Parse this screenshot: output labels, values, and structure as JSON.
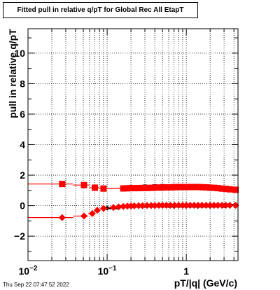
{
  "chart_data": {
    "type": "scatter",
    "title": "Fitted pull in relative q/pT for Global Rec All EtapT",
    "xlabel": "pT/|q| (GeV/c)",
    "ylabel": "pull in relative q/pT",
    "xscale": "log",
    "xlim": [
      0.01,
      4.5
    ],
    "ylim": [
      -3.6,
      11.6
    ],
    "grid": true,
    "x_tick_labels": [
      "10−2",
      "10−1",
      "1"
    ],
    "y_ticks": [
      -2,
      0,
      2,
      4,
      6,
      8,
      10
    ],
    "series": [
      {
        "color": "#ff0000",
        "marker": "square",
        "points": [
          {
            "x": 0.027,
            "y": 1.42
          },
          {
            "x": 0.051,
            "y": 1.35
          },
          {
            "x": 0.07,
            "y": 1.18
          },
          {
            "x": 0.09,
            "y": 1.12
          },
          {
            "x": 0.16,
            "y": 1.13
          },
          {
            "x": 0.18,
            "y": 1.14
          },
          {
            "x": 0.2,
            "y": 1.15
          },
          {
            "x": 0.22,
            "y": 1.15
          },
          {
            "x": 0.25,
            "y": 1.15
          },
          {
            "x": 0.28,
            "y": 1.16
          },
          {
            "x": 0.32,
            "y": 1.16
          },
          {
            "x": 0.36,
            "y": 1.17
          },
          {
            "x": 0.4,
            "y": 1.18
          },
          {
            "x": 0.45,
            "y": 1.19
          },
          {
            "x": 0.5,
            "y": 1.19
          },
          {
            "x": 0.56,
            "y": 1.2
          },
          {
            "x": 0.63,
            "y": 1.2
          },
          {
            "x": 0.71,
            "y": 1.21
          },
          {
            "x": 0.8,
            "y": 1.22
          },
          {
            "x": 0.9,
            "y": 1.22
          },
          {
            "x": 1.0,
            "y": 1.22
          },
          {
            "x": 1.12,
            "y": 1.22
          },
          {
            "x": 1.26,
            "y": 1.22
          },
          {
            "x": 1.41,
            "y": 1.22
          },
          {
            "x": 1.58,
            "y": 1.21
          },
          {
            "x": 1.78,
            "y": 1.2
          },
          {
            "x": 2.0,
            "y": 1.18
          },
          {
            "x": 2.24,
            "y": 1.17
          },
          {
            "x": 2.51,
            "y": 1.15
          },
          {
            "x": 2.82,
            "y": 1.12
          },
          {
            "x": 3.16,
            "y": 1.1
          },
          {
            "x": 3.55,
            "y": 1.07
          },
          {
            "x": 4.2,
            "y": 1.04
          }
        ]
      },
      {
        "color": "#ff0000",
        "marker": "diamond",
        "points": [
          {
            "x": 0.027,
            "y": -0.78
          },
          {
            "x": 0.051,
            "y": -0.68
          },
          {
            "x": 0.065,
            "y": -0.52
          },
          {
            "x": 0.075,
            "y": -0.3
          },
          {
            "x": 0.09,
            "y": -0.18
          },
          {
            "x": 0.12,
            "y": -0.12
          },
          {
            "x": 0.14,
            "y": -0.08
          },
          {
            "x": 0.16,
            "y": -0.05
          },
          {
            "x": 0.18,
            "y": -0.03
          },
          {
            "x": 0.2,
            "y": -0.02
          },
          {
            "x": 0.22,
            "y": -0.01
          },
          {
            "x": 0.25,
            "y": 0.0
          },
          {
            "x": 0.28,
            "y": 0.0
          },
          {
            "x": 0.32,
            "y": 0.01
          },
          {
            "x": 0.36,
            "y": 0.01
          },
          {
            "x": 0.4,
            "y": 0.01
          },
          {
            "x": 0.45,
            "y": 0.02
          },
          {
            "x": 0.5,
            "y": 0.02
          },
          {
            "x": 0.56,
            "y": 0.02
          },
          {
            "x": 0.63,
            "y": 0.02
          },
          {
            "x": 0.71,
            "y": 0.02
          },
          {
            "x": 0.8,
            "y": 0.02
          },
          {
            "x": 0.9,
            "y": 0.02
          },
          {
            "x": 1.0,
            "y": 0.02
          },
          {
            "x": 1.12,
            "y": 0.02
          },
          {
            "x": 1.26,
            "y": 0.02
          },
          {
            "x": 1.41,
            "y": 0.02
          },
          {
            "x": 1.58,
            "y": 0.02
          },
          {
            "x": 1.78,
            "y": 0.02
          },
          {
            "x": 2.0,
            "y": 0.02
          },
          {
            "x": 2.24,
            "y": 0.02
          },
          {
            "x": 2.51,
            "y": 0.02
          },
          {
            "x": 2.82,
            "y": 0.02
          },
          {
            "x": 3.16,
            "y": 0.02
          },
          {
            "x": 3.55,
            "y": 0.02
          },
          {
            "x": 4.2,
            "y": 0.02
          }
        ]
      },
      {
        "color": "#000000",
        "marker": "square",
        "points": [
          {
            "x": 0.2,
            "y": 1.22
          },
          {
            "x": 0.3,
            "y": 1.25
          },
          {
            "x": 0.4,
            "y": 1.27
          },
          {
            "x": 0.5,
            "y": 1.28
          },
          {
            "x": 0.7,
            "y": 1.28
          },
          {
            "x": 1.0,
            "y": 1.27
          },
          {
            "x": 1.4,
            "y": 1.26
          },
          {
            "x": 2.0,
            "y": 1.22
          }
        ]
      },
      {
        "color": "#000000",
        "marker": "diamond",
        "points": [
          {
            "x": 0.1,
            "y": -0.16
          },
          {
            "x": 0.2,
            "y": -0.06
          },
          {
            "x": 0.4,
            "y": -0.05
          },
          {
            "x": 0.7,
            "y": -0.05
          },
          {
            "x": 1.0,
            "y": -0.05
          },
          {
            "x": 1.4,
            "y": -0.06
          },
          {
            "x": 2.0,
            "y": -0.05
          },
          {
            "x": 3.0,
            "y": 0.0
          },
          {
            "x": 4.2,
            "y": 0.05
          }
        ]
      }
    ]
  },
  "footer": {
    "timestamp": "Thu Sep 22 07:47:52 2022"
  }
}
